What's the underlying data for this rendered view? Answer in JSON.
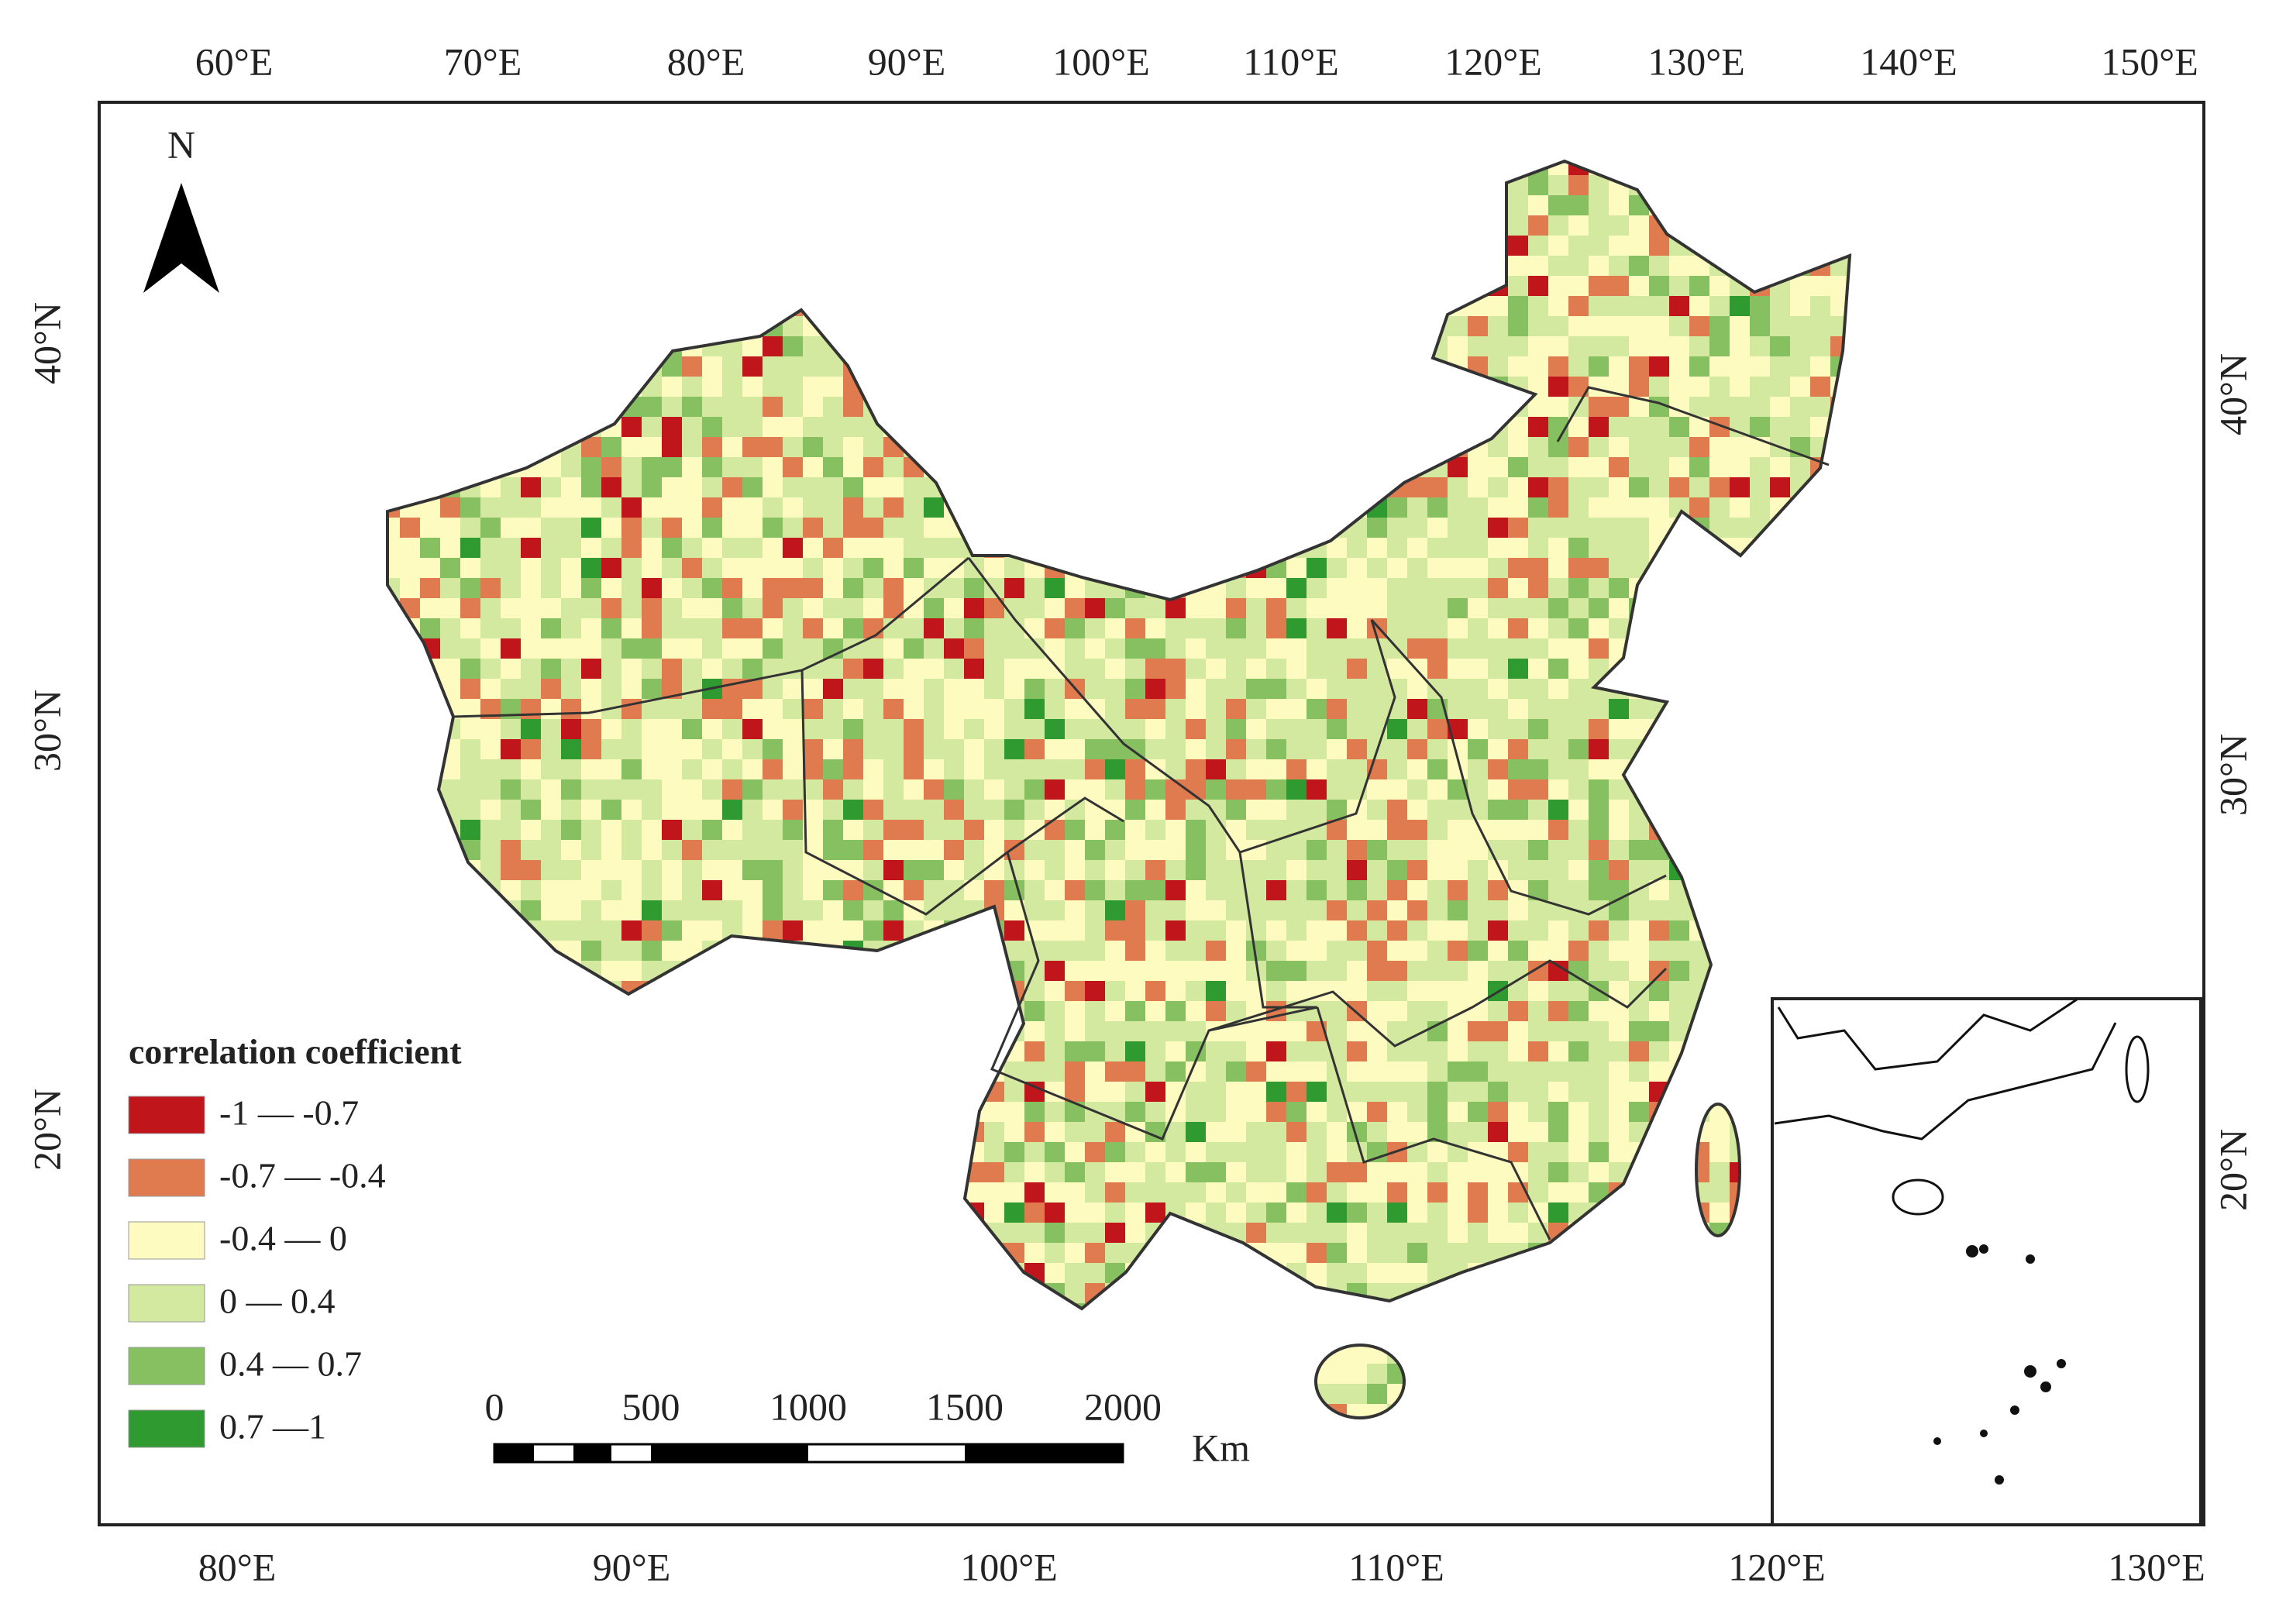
{
  "top_axis": [
    "60°E",
    "70°E",
    "80°E",
    "90°E",
    "100°E",
    "110°E",
    "120°E",
    "130°E",
    "140°E",
    "150°E"
  ],
  "bottom_axis": [
    "80°E",
    "90°E",
    "100°E",
    "110°E",
    "120°E",
    "130°E"
  ],
  "left_axis": [
    "40°N",
    "30°N",
    "20°N"
  ],
  "right_axis": [
    "40°N",
    "30°N",
    "20°N"
  ],
  "north_label": "N",
  "legend": {
    "title": "correlation coefficient",
    "items": [
      {
        "label": "-1 — -0.7",
        "color": "#c0161b"
      },
      {
        "label": "-0.7 — -0.4",
        "color": "#e07a4f"
      },
      {
        "label": "-0.4 — 0",
        "color": "#fdfbc0"
      },
      {
        "label": "0 — 0.4",
        "color": "#d4e9a0"
      },
      {
        "label": "0.4 — 0.7",
        "color": "#86c060"
      },
      {
        "label": "0.7 —1",
        "color": "#2e9a2f"
      }
    ]
  },
  "scale_bar": {
    "ticks": [
      "0",
      "500",
      "1000",
      "1500",
      "2000"
    ],
    "unit": "Km"
  }
}
